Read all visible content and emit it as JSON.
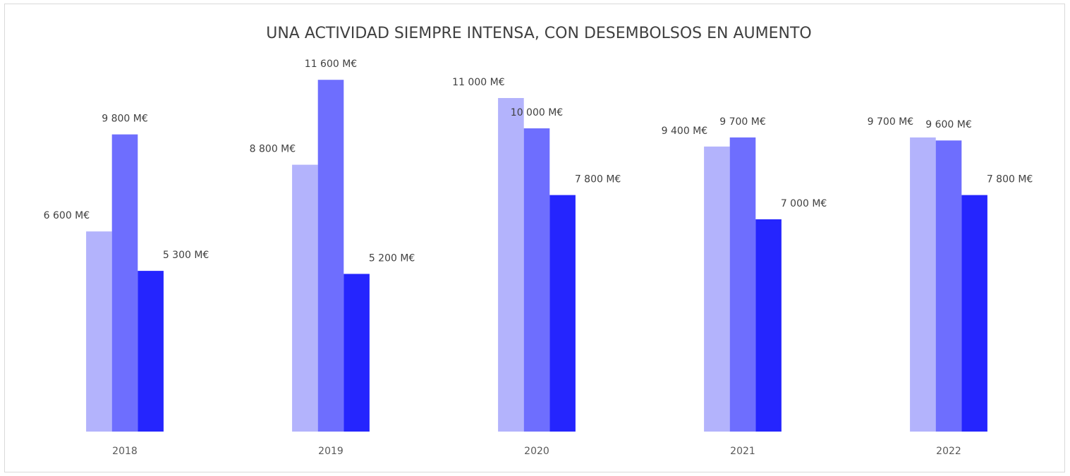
{
  "chart_data": {
    "type": "bar",
    "title": "UNA ACTIVIDAD SIEMPRE INTENSA, CON DESEMBOLSOS EN AUMENTO",
    "categories": [
      "2018",
      "2019",
      "2020",
      "2021",
      "2022"
    ],
    "series": [
      {
        "color": "#b3b3fc",
        "values": [
          6600,
          8800,
          11000,
          9400,
          9700
        ],
        "value_labels": [
          "6 600 M€",
          "8 800 M€",
          "11 000 M€",
          "9 400 M€",
          "9 700 M€"
        ]
      },
      {
        "color": "#6e6efe",
        "values": [
          9800,
          11600,
          10000,
          9700,
          9600
        ],
        "value_labels": [
          "9 800 M€",
          "11 600 M€",
          "10 000 M€",
          "9 700 M€",
          "9 600 M€"
        ]
      },
      {
        "color": "#2525fe",
        "values": [
          5300,
          5200,
          7800,
          7000,
          7800
        ],
        "value_labels": [
          "5 300 M€",
          "5 200 M€",
          "7 800 M€",
          "7 000 M€",
          "7 800 M€"
        ]
      }
    ],
    "ylim": [
      0,
      12000
    ]
  }
}
